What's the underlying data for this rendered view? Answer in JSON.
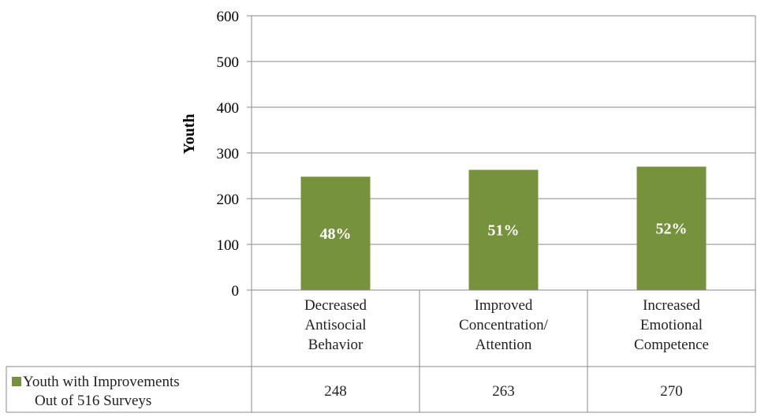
{
  "chart_data": {
    "type": "bar",
    "ylabel": "Youth",
    "ylim": [
      0,
      600
    ],
    "yticks": [
      0,
      100,
      200,
      300,
      400,
      500,
      600
    ],
    "grid": true,
    "categories": [
      [
        "Decreased",
        "Antisocial",
        "Behavior"
      ],
      [
        "Improved",
        "Concentration/",
        "Attention"
      ],
      [
        "Increased",
        "Emotional",
        "Competence"
      ]
    ],
    "series": [
      {
        "name": [
          "Youth with Improvements",
          "Out of 516 Surveys"
        ],
        "color": "#76923c",
        "values": [
          248,
          263,
          270
        ],
        "data_labels": [
          "48%",
          "51%",
          "52%"
        ]
      }
    ],
    "data_table": true
  }
}
